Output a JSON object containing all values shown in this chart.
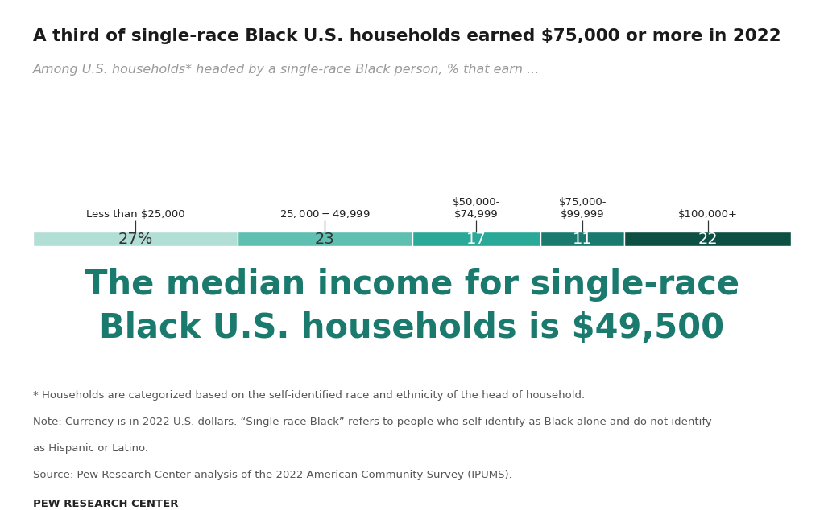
{
  "title": "A third of single-race Black U.S. households earned $75,000 or more in 2022",
  "subtitle": "Among U.S. households* headed by a single-race Black person, % that earn ...",
  "categories": [
    "Less than $25,000",
    "$25,000-$49,999",
    "$50,000-\n$74,999",
    "$75,000-\n$99,999",
    "$100,000+"
  ],
  "values": [
    27,
    23,
    17,
    11,
    22
  ],
  "labels": [
    "27%",
    "23",
    "17",
    "11",
    "22"
  ],
  "colors": [
    "#b2dfd5",
    "#5fbfb0",
    "#2aa898",
    "#1a7a6e",
    "#0d4f42"
  ],
  "label_colors": [
    "#333333",
    "#333333",
    "#ffffff",
    "#ffffff",
    "#ffffff"
  ],
  "median_text_line1": "The median income for single-race",
  "median_text_line2": "Black U.S. households is $49,500",
  "median_color": "#1a7a6e",
  "footnote1": "* Households are categorized based on the self-identified race and ethnicity of the head of household.",
  "footnote2": "Note: Currency is in 2022 U.S. dollars. “Single-race Black” refers to people who self-identify as Black alone and do not identify",
  "footnote3": "as Hispanic or Latino.",
  "footnote4": "Source: Pew Research Center analysis of the 2022 American Community Survey (IPUMS).",
  "source_label": "PEW RESEARCH CENTER",
  "background_color": "#ffffff",
  "title_fontsize": 15.5,
  "subtitle_fontsize": 11.5,
  "median_fontsize": 30,
  "bar_label_fontsize": 14,
  "cat_label_fontsize": 9.5,
  "footnote_fontsize": 9.5,
  "source_fontsize": 9.5
}
